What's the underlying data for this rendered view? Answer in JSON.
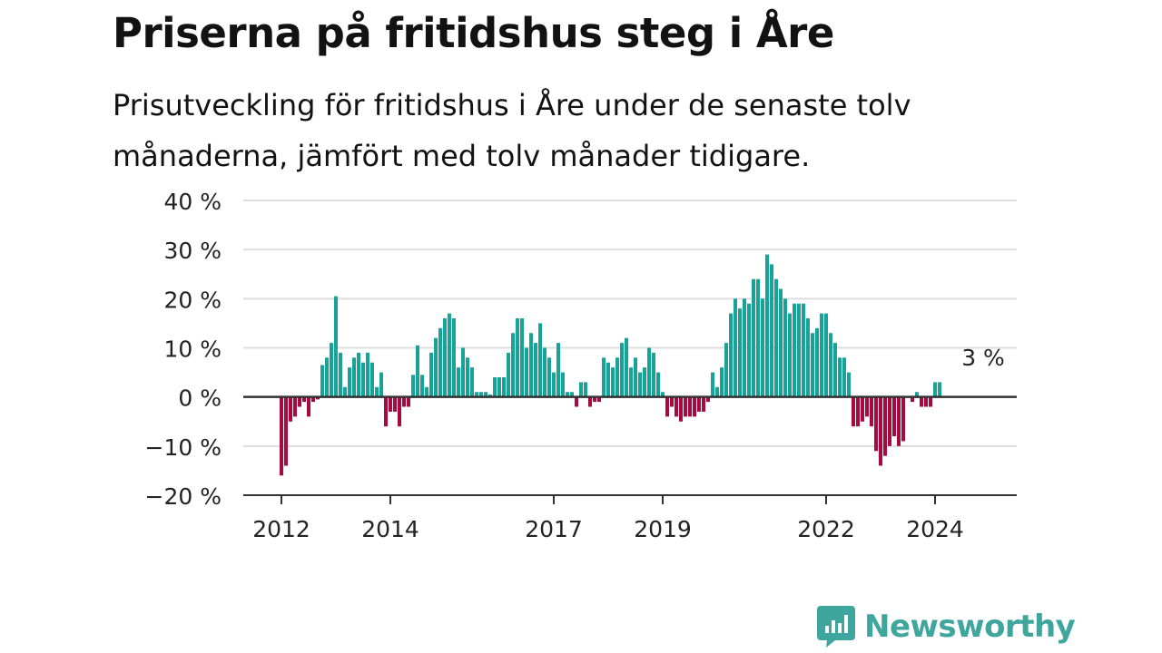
{
  "title": "Priserna på fritidshus steg i Åre",
  "subtitle": "Prisutveckling för fritidshus i Åre under de senaste tolv månaderna, jämfört med tolv månader tidigare.",
  "brand": "Newsworthy",
  "colors": {
    "positive": "#17a398",
    "negative": "#a8093f",
    "grid": "#dddddd",
    "zero": "#333333",
    "text": "#222222",
    "brand": "#3ea69d"
  },
  "chart_data": {
    "type": "bar",
    "x_start": "2012-01",
    "x_interval": "month",
    "values": [
      -16,
      -14,
      -5,
      -4,
      -2,
      -1,
      -4,
      -1,
      -0.5,
      6.5,
      8,
      11,
      20.5,
      9,
      2,
      6,
      8,
      9,
      7,
      9,
      7,
      2,
      5,
      -6,
      -3,
      -3,
      -6,
      -2,
      -2,
      4.5,
      10.5,
      4.5,
      2,
      9,
      12,
      14,
      16,
      17,
      16,
      6,
      10,
      8,
      6,
      1,
      1,
      1,
      0.5,
      4,
      4,
      4,
      9,
      13,
      16,
      16,
      10,
      13,
      11,
      15,
      10,
      8,
      5,
      11,
      5,
      1,
      1,
      -2,
      3,
      3,
      -2,
      -1,
      -1,
      8,
      7,
      6,
      8,
      11,
      12,
      6,
      8,
      5,
      6,
      10,
      9,
      5,
      1,
      -4,
      -2,
      -4,
      -5,
      -4,
      -4,
      -4,
      -3,
      -3,
      -1,
      5,
      2,
      6,
      11,
      17,
      20,
      18,
      20,
      19,
      24,
      24,
      20,
      29,
      27,
      24,
      22,
      20,
      17,
      19,
      19,
      19,
      16,
      13,
      14,
      17,
      17,
      13,
      11,
      8,
      8,
      5,
      -6,
      -6,
      -5,
      -4,
      -6,
      -11,
      -14,
      -12,
      -10,
      -8,
      -10,
      -9,
      0,
      -1,
      1,
      -2,
      -2,
      -2,
      3,
      3
    ],
    "ylim": [
      -20,
      40
    ],
    "yticks": [
      -20,
      -10,
      0,
      10,
      20,
      30,
      40
    ],
    "ytick_labels": [
      "−20 %",
      "−10 %",
      "0 %",
      "10 %",
      "20 %",
      "30 %",
      "40 %"
    ],
    "xtick_labels": [
      {
        "label": "2012",
        "index": 0
      },
      {
        "label": "2014",
        "index": 24
      },
      {
        "label": "2017",
        "index": 60
      },
      {
        "label": "2019",
        "index": 84
      },
      {
        "label": "2022",
        "index": 120
      },
      {
        "label": "2024",
        "index": 144
      }
    ],
    "annotation": {
      "text": "3 %",
      "index": 154
    },
    "grid": true,
    "legend": "none"
  }
}
